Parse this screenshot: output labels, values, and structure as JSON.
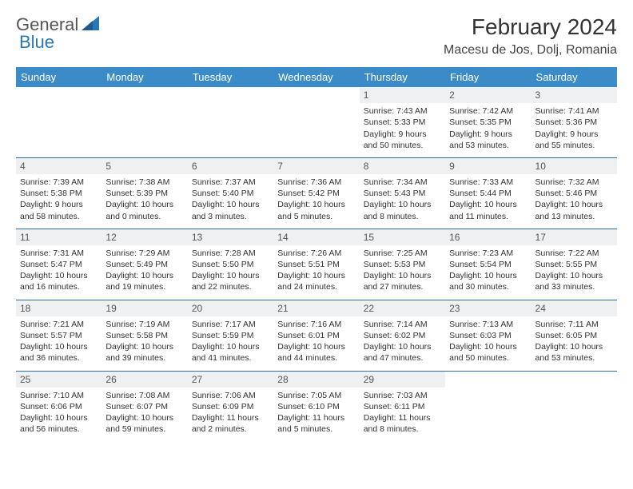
{
  "logo": {
    "text1": "General",
    "text2": "Blue"
  },
  "title": "February 2024",
  "location": "Macesu de Jos, Dolj, Romania",
  "colors": {
    "header_bg": "#3b8bc9",
    "header_text": "#ffffff",
    "border": "#2b6ca3",
    "daynum_bg": "#eef0f2",
    "logo_accent": "#2b77b5"
  },
  "day_labels": [
    "Sunday",
    "Monday",
    "Tuesday",
    "Wednesday",
    "Thursday",
    "Friday",
    "Saturday"
  ],
  "weeks": [
    [
      {
        "day": "",
        "sunrise": "",
        "sunset": "",
        "daylight": ""
      },
      {
        "day": "",
        "sunrise": "",
        "sunset": "",
        "daylight": ""
      },
      {
        "day": "",
        "sunrise": "",
        "sunset": "",
        "daylight": ""
      },
      {
        "day": "",
        "sunrise": "",
        "sunset": "",
        "daylight": ""
      },
      {
        "day": "1",
        "sunrise": "Sunrise: 7:43 AM",
        "sunset": "Sunset: 5:33 PM",
        "daylight": "Daylight: 9 hours and 50 minutes."
      },
      {
        "day": "2",
        "sunrise": "Sunrise: 7:42 AM",
        "sunset": "Sunset: 5:35 PM",
        "daylight": "Daylight: 9 hours and 53 minutes."
      },
      {
        "day": "3",
        "sunrise": "Sunrise: 7:41 AM",
        "sunset": "Sunset: 5:36 PM",
        "daylight": "Daylight: 9 hours and 55 minutes."
      }
    ],
    [
      {
        "day": "4",
        "sunrise": "Sunrise: 7:39 AM",
        "sunset": "Sunset: 5:38 PM",
        "daylight": "Daylight: 9 hours and 58 minutes."
      },
      {
        "day": "5",
        "sunrise": "Sunrise: 7:38 AM",
        "sunset": "Sunset: 5:39 PM",
        "daylight": "Daylight: 10 hours and 0 minutes."
      },
      {
        "day": "6",
        "sunrise": "Sunrise: 7:37 AM",
        "sunset": "Sunset: 5:40 PM",
        "daylight": "Daylight: 10 hours and 3 minutes."
      },
      {
        "day": "7",
        "sunrise": "Sunrise: 7:36 AM",
        "sunset": "Sunset: 5:42 PM",
        "daylight": "Daylight: 10 hours and 5 minutes."
      },
      {
        "day": "8",
        "sunrise": "Sunrise: 7:34 AM",
        "sunset": "Sunset: 5:43 PM",
        "daylight": "Daylight: 10 hours and 8 minutes."
      },
      {
        "day": "9",
        "sunrise": "Sunrise: 7:33 AM",
        "sunset": "Sunset: 5:44 PM",
        "daylight": "Daylight: 10 hours and 11 minutes."
      },
      {
        "day": "10",
        "sunrise": "Sunrise: 7:32 AM",
        "sunset": "Sunset: 5:46 PM",
        "daylight": "Daylight: 10 hours and 13 minutes."
      }
    ],
    [
      {
        "day": "11",
        "sunrise": "Sunrise: 7:31 AM",
        "sunset": "Sunset: 5:47 PM",
        "daylight": "Daylight: 10 hours and 16 minutes."
      },
      {
        "day": "12",
        "sunrise": "Sunrise: 7:29 AM",
        "sunset": "Sunset: 5:49 PM",
        "daylight": "Daylight: 10 hours and 19 minutes."
      },
      {
        "day": "13",
        "sunrise": "Sunrise: 7:28 AM",
        "sunset": "Sunset: 5:50 PM",
        "daylight": "Daylight: 10 hours and 22 minutes."
      },
      {
        "day": "14",
        "sunrise": "Sunrise: 7:26 AM",
        "sunset": "Sunset: 5:51 PM",
        "daylight": "Daylight: 10 hours and 24 minutes."
      },
      {
        "day": "15",
        "sunrise": "Sunrise: 7:25 AM",
        "sunset": "Sunset: 5:53 PM",
        "daylight": "Daylight: 10 hours and 27 minutes."
      },
      {
        "day": "16",
        "sunrise": "Sunrise: 7:23 AM",
        "sunset": "Sunset: 5:54 PM",
        "daylight": "Daylight: 10 hours and 30 minutes."
      },
      {
        "day": "17",
        "sunrise": "Sunrise: 7:22 AM",
        "sunset": "Sunset: 5:55 PM",
        "daylight": "Daylight: 10 hours and 33 minutes."
      }
    ],
    [
      {
        "day": "18",
        "sunrise": "Sunrise: 7:21 AM",
        "sunset": "Sunset: 5:57 PM",
        "daylight": "Daylight: 10 hours and 36 minutes."
      },
      {
        "day": "19",
        "sunrise": "Sunrise: 7:19 AM",
        "sunset": "Sunset: 5:58 PM",
        "daylight": "Daylight: 10 hours and 39 minutes."
      },
      {
        "day": "20",
        "sunrise": "Sunrise: 7:17 AM",
        "sunset": "Sunset: 5:59 PM",
        "daylight": "Daylight: 10 hours and 41 minutes."
      },
      {
        "day": "21",
        "sunrise": "Sunrise: 7:16 AM",
        "sunset": "Sunset: 6:01 PM",
        "daylight": "Daylight: 10 hours and 44 minutes."
      },
      {
        "day": "22",
        "sunrise": "Sunrise: 7:14 AM",
        "sunset": "Sunset: 6:02 PM",
        "daylight": "Daylight: 10 hours and 47 minutes."
      },
      {
        "day": "23",
        "sunrise": "Sunrise: 7:13 AM",
        "sunset": "Sunset: 6:03 PM",
        "daylight": "Daylight: 10 hours and 50 minutes."
      },
      {
        "day": "24",
        "sunrise": "Sunrise: 7:11 AM",
        "sunset": "Sunset: 6:05 PM",
        "daylight": "Daylight: 10 hours and 53 minutes."
      }
    ],
    [
      {
        "day": "25",
        "sunrise": "Sunrise: 7:10 AM",
        "sunset": "Sunset: 6:06 PM",
        "daylight": "Daylight: 10 hours and 56 minutes."
      },
      {
        "day": "26",
        "sunrise": "Sunrise: 7:08 AM",
        "sunset": "Sunset: 6:07 PM",
        "daylight": "Daylight: 10 hours and 59 minutes."
      },
      {
        "day": "27",
        "sunrise": "Sunrise: 7:06 AM",
        "sunset": "Sunset: 6:09 PM",
        "daylight": "Daylight: 11 hours and 2 minutes."
      },
      {
        "day": "28",
        "sunrise": "Sunrise: 7:05 AM",
        "sunset": "Sunset: 6:10 PM",
        "daylight": "Daylight: 11 hours and 5 minutes."
      },
      {
        "day": "29",
        "sunrise": "Sunrise: 7:03 AM",
        "sunset": "Sunset: 6:11 PM",
        "daylight": "Daylight: 11 hours and 8 minutes."
      },
      {
        "day": "",
        "sunrise": "",
        "sunset": "",
        "daylight": ""
      },
      {
        "day": "",
        "sunrise": "",
        "sunset": "",
        "daylight": ""
      }
    ]
  ]
}
